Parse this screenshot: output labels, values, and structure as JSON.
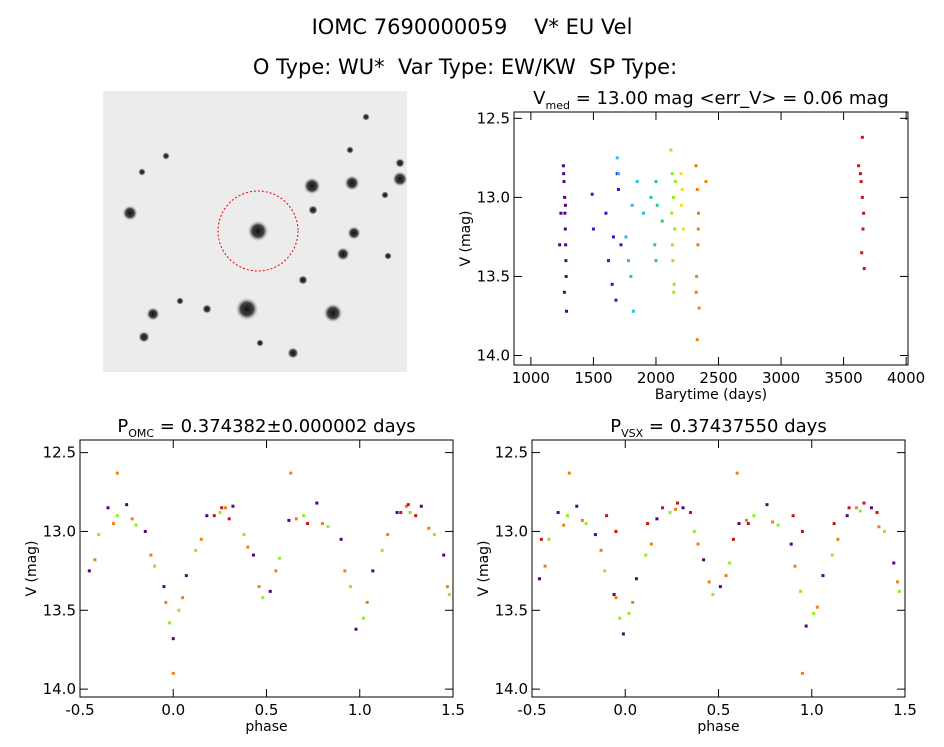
{
  "header": {
    "title": "IOMC 7690000059    V* EU Vel",
    "subtitle": "O Type: WU*  Var Type: EW/KW  SP Type:"
  },
  "chart_data": [
    {
      "type": "scatter",
      "title": {
        "main": "V",
        "sub": "med",
        "rest": " = 13.00 mag <err_V> = 0.06 mag"
      },
      "xlabel": "Barytime (days)",
      "ylabel": "V (mag)",
      "xlim": [
        865,
        4015
      ],
      "ylim": [
        14.06,
        12.46
      ],
      "xticks": [
        1000,
        1500,
        2000,
        2500,
        3000,
        3500,
        4000
      ],
      "yticks": [
        12.5,
        {
          "value": 13,
          "label": "13.0"
        },
        13.5,
        {
          "value": 14,
          "label": "14.0"
        }
      ],
      "series": [
        {
          "color": "#55007f",
          "x": [
            1260,
            1265,
            1270,
            1272,
            1275,
            1278,
            1280,
            1282,
            1268,
            1285,
            1230,
            1240,
            1262,
            1276
          ],
          "values": [
            12.8,
            12.9,
            13.0,
            13.1,
            13.2,
            13.3,
            13.4,
            13.5,
            13.6,
            13.72,
            13.3,
            13.1,
            12.85,
            13.05
          ]
        },
        {
          "color": "#2020c0",
          "x": [
            1490,
            1500,
            1600,
            1620,
            1650,
            1680,
            1700,
            1720,
            1660,
            1690
          ],
          "values": [
            12.98,
            13.2,
            13.1,
            13.4,
            13.55,
            13.65,
            12.95,
            13.3,
            13.25,
            12.85
          ]
        },
        {
          "color": "#30b8e0",
          "x": [
            1690,
            1700,
            1760,
            1800,
            1820,
            1850,
            1900,
            1780,
            1810
          ],
          "values": [
            12.75,
            12.85,
            13.25,
            13.5,
            13.72,
            12.9,
            13.1,
            13.4,
            13.05
          ]
        },
        {
          "color": "#20d080",
          "x": [
            1960,
            1990,
            2000,
            2010,
            2050,
            2000
          ],
          "values": [
            13.0,
            13.3,
            13.4,
            13.05,
            13.15,
            12.9
          ]
        },
        {
          "color": "#90ee20",
          "x": [
            2120,
            2130,
            2140,
            2150,
            2135,
            2145,
            2125,
            2155,
            2132,
            2142
          ],
          "values": [
            12.7,
            12.85,
            13.0,
            13.2,
            13.4,
            13.55,
            13.1,
            12.9,
            13.3,
            13.6
          ]
        },
        {
          "color": "#f0e020",
          "x": [
            2200,
            2210,
            2220,
            2205
          ],
          "values": [
            12.85,
            12.95,
            13.2,
            13.05
          ]
        },
        {
          "color": "#f08010",
          "x": [
            2320,
            2330,
            2340,
            2335,
            2325,
            2345,
            2330,
            2400,
            2338,
            2322
          ],
          "values": [
            12.8,
            12.95,
            13.1,
            13.3,
            13.5,
            13.7,
            13.9,
            12.9,
            13.2,
            13.6
          ]
        },
        {
          "color": "#d01010",
          "x": [
            3620,
            3640,
            3650,
            3660,
            3655,
            3645,
            3665,
            3650,
            3635
          ],
          "values": [
            12.8,
            12.9,
            13.0,
            13.1,
            13.2,
            13.35,
            13.45,
            12.62,
            12.85
          ]
        }
      ]
    },
    {
      "type": "scatter",
      "title": {
        "main": "P",
        "sub": "OMC",
        "rest": " = 0.374382±0.000002 days"
      },
      "xlabel": "phase",
      "ylabel": "V (mag)",
      "xlim": [
        -0.5,
        1.5
      ],
      "ylim": [
        14.05,
        12.42
      ],
      "xticks": [
        -0.5,
        {
          "value": 0,
          "label": "0.0"
        },
        0.5,
        {
          "value": 1,
          "label": "1.0"
        },
        1.5
      ],
      "yticks": [
        12.5,
        {
          "value": 13,
          "label": "13.0"
        },
        13.5,
        {
          "value": 14,
          "label": "14.0"
        }
      ],
      "series": [
        {
          "color": "#55007f",
          "x": [
            -0.45,
            -0.35,
            -0.25,
            -0.15,
            -0.05,
            0.0,
            0.07,
            0.18,
            0.32,
            0.43,
            0.52,
            0.62,
            0.77,
            0.9,
            0.98,
            1.07,
            1.2,
            1.33,
            1.45
          ],
          "values": [
            13.25,
            12.85,
            12.83,
            13.0,
            13.35,
            13.68,
            13.28,
            12.9,
            12.84,
            13.15,
            13.38,
            12.93,
            12.82,
            13.05,
            13.62,
            13.25,
            12.88,
            12.84,
            13.15
          ]
        },
        {
          "color": "#90ee20",
          "x": [
            -0.4,
            -0.3,
            -0.2,
            -0.1,
            -0.02,
            0.03,
            0.12,
            0.25,
            0.38,
            0.48,
            0.57,
            0.7,
            0.83,
            0.95,
            1.02,
            1.12,
            1.27,
            1.4,
            1.48
          ],
          "values": [
            13.02,
            12.9,
            12.96,
            13.22,
            13.58,
            13.5,
            13.12,
            12.88,
            13.02,
            13.42,
            13.17,
            12.9,
            12.97,
            13.35,
            13.55,
            13.12,
            12.88,
            13.02,
            13.4
          ]
        },
        {
          "color": "#f08010",
          "x": [
            -0.42,
            -0.32,
            -0.22,
            -0.12,
            -0.04,
            0.05,
            0.15,
            0.28,
            0.4,
            0.46,
            0.55,
            0.66,
            0.8,
            0.92,
            1.04,
            1.15,
            1.25,
            1.37,
            1.47,
            -0.3,
            0.63,
            0.0
          ],
          "values": [
            13.18,
            12.95,
            12.92,
            13.15,
            13.45,
            13.42,
            13.05,
            12.85,
            13.1,
            13.35,
            13.25,
            12.92,
            12.95,
            13.25,
            13.45,
            13.02,
            12.84,
            12.98,
            13.35,
            12.63,
            12.63,
            13.9
          ]
        },
        {
          "color": "#d01010",
          "x": [
            0.22,
            0.26,
            0.3,
            1.22,
            1.26,
            1.3,
            0.72
          ],
          "values": [
            12.9,
            12.85,
            12.92,
            12.88,
            12.83,
            12.9,
            12.95
          ]
        }
      ]
    },
    {
      "type": "scatter",
      "title": {
        "main": "P",
        "sub": "VSX",
        "rest": " = 0.37437550 days"
      },
      "xlabel": "phase",
      "ylabel": "V (mag)",
      "xlim": [
        -0.5,
        1.5
      ],
      "ylim": [
        14.05,
        12.42
      ],
      "xticks": [
        -0.5,
        {
          "value": 0,
          "label": "0.0"
        },
        0.5,
        {
          "value": 1,
          "label": "1.0"
        },
        1.5
      ],
      "yticks": [
        12.5,
        {
          "value": 13,
          "label": "13.0"
        },
        13.5,
        {
          "value": 14,
          "label": "14.0"
        }
      ],
      "series": [
        {
          "color": "#55007f",
          "x": [
            -0.46,
            -0.36,
            -0.26,
            -0.16,
            -0.06,
            -0.01,
            0.06,
            0.17,
            0.31,
            0.42,
            0.51,
            0.61,
            0.76,
            0.89,
            0.97,
            1.06,
            1.19,
            1.32,
            1.44
          ],
          "values": [
            13.3,
            12.88,
            12.84,
            13.02,
            13.4,
            13.65,
            13.3,
            12.92,
            12.85,
            13.18,
            13.35,
            12.95,
            12.83,
            13.08,
            13.6,
            13.28,
            12.9,
            12.85,
            13.2
          ]
        },
        {
          "color": "#90ee20",
          "x": [
            -0.41,
            -0.31,
            -0.21,
            -0.11,
            -0.03,
            0.02,
            0.11,
            0.24,
            0.37,
            0.47,
            0.56,
            0.69,
            0.82,
            0.94,
            1.01,
            1.11,
            1.26,
            1.39,
            1.47
          ],
          "values": [
            13.05,
            12.9,
            12.95,
            13.25,
            13.55,
            13.52,
            13.15,
            12.88,
            13.0,
            13.4,
            13.2,
            12.9,
            12.96,
            13.38,
            13.52,
            13.15,
            12.87,
            13.0,
            13.38
          ]
        },
        {
          "color": "#f08010",
          "x": [
            -0.43,
            -0.33,
            -0.23,
            -0.13,
            -0.05,
            0.04,
            0.14,
            0.27,
            0.39,
            0.45,
            0.54,
            0.65,
            0.79,
            0.91,
            1.03,
            1.14,
            1.24,
            1.36,
            1.46,
            -0.3,
            0.6,
            0.95
          ],
          "values": [
            13.22,
            12.96,
            12.93,
            13.12,
            13.42,
            13.45,
            13.08,
            12.86,
            13.08,
            13.32,
            13.28,
            12.93,
            12.94,
            13.22,
            13.48,
            13.05,
            12.85,
            12.97,
            13.32,
            12.63,
            12.63,
            13.9
          ]
        },
        {
          "color": "#d01010",
          "x": [
            -0.1,
            -0.05,
            0.12,
            0.2,
            0.28,
            0.35,
            0.58,
            0.66,
            0.9,
            0.95,
            1.12,
            1.2,
            1.28,
            1.35,
            -0.45
          ],
          "values": [
            12.9,
            13.0,
            12.95,
            12.85,
            12.82,
            12.88,
            13.05,
            12.95,
            12.9,
            13.0,
            12.95,
            12.85,
            12.82,
            12.88,
            13.05
          ]
        }
      ]
    }
  ]
}
